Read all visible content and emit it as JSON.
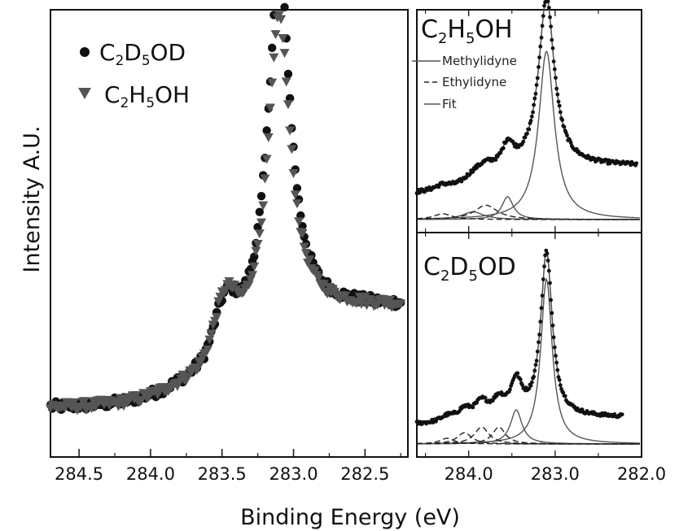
{
  "chart_data": [
    {
      "id": "main",
      "type": "scatter",
      "xlabel": "Binding Energy (eV)",
      "ylabel": "Intensity A.U.",
      "xlim": [
        284.7,
        282.2
      ],
      "x_reversed": true,
      "xticks": [
        284.5,
        284.0,
        283.5,
        283.0,
        282.5
      ],
      "xtick_labels": [
        "284.5",
        "284.0",
        "283.5",
        "283.0",
        "282.5"
      ],
      "ylim": [
        0,
        1.05
      ],
      "legend_position": "top-left",
      "series": [
        {
          "name": "C2D5OD",
          "label_parts": {
            "a": "C",
            "a_sub": "2",
            "b": "D",
            "b_sub": "5",
            "c": "OD"
          },
          "marker": "circle",
          "color": "#111111",
          "x_range": [
            284.7,
            282.25
          ],
          "y_range": [
            0.095,
            0.985
          ]
        },
        {
          "name": "C2H5OH",
          "label_parts": {
            "a": "C",
            "a_sub": "2",
            "b": "H",
            "b_sub": "5",
            "c": "OH"
          },
          "marker": "triangle-down",
          "color": "#555555",
          "x_range": [
            284.7,
            282.25
          ],
          "y_range": [
            0.1,
            0.87
          ]
        }
      ]
    },
    {
      "id": "inset-top",
      "type": "line",
      "title_parts": {
        "a": "C",
        "a_sub": "2",
        "b": "H",
        "b_sub": "5",
        "c": "OH"
      },
      "xlim": [
        284.6,
        282.0
      ],
      "x_reversed": true,
      "legend_position": "top-left",
      "legend": [
        "Methylidyne",
        "Ethylidyne",
        "Fit"
      ],
      "components": [
        {
          "name": "Methylidyne",
          "style": "solid",
          "peaks_eV": [
            283.1,
            283.55,
            283.95
          ]
        },
        {
          "name": "Ethylidyne",
          "style": "dashed",
          "peaks_eV": [
            283.8,
            284.3
          ]
        },
        {
          "name": "Fit",
          "style": "solid"
        }
      ]
    },
    {
      "id": "inset-bottom",
      "type": "line",
      "title_parts": {
        "a": "C",
        "a_sub": "2",
        "b": "D",
        "b_sub": "5",
        "c": "OD"
      },
      "xlim": [
        284.6,
        282.0
      ],
      "x_reversed": true,
      "xticks": [
        284.0,
        283.0,
        282.0
      ],
      "xtick_labels": [
        "284.0",
        "283.0",
        "282.0"
      ],
      "components": [
        {
          "name": "Methylidyne",
          "style": "solid",
          "peaks_eV": [
            283.1,
            283.45
          ]
        },
        {
          "name": "Ethylidyne",
          "style": "dashed",
          "peaks_eV": [
            283.65,
            283.85,
            284.05,
            284.25
          ]
        },
        {
          "name": "Fit",
          "style": "solid"
        }
      ]
    }
  ]
}
